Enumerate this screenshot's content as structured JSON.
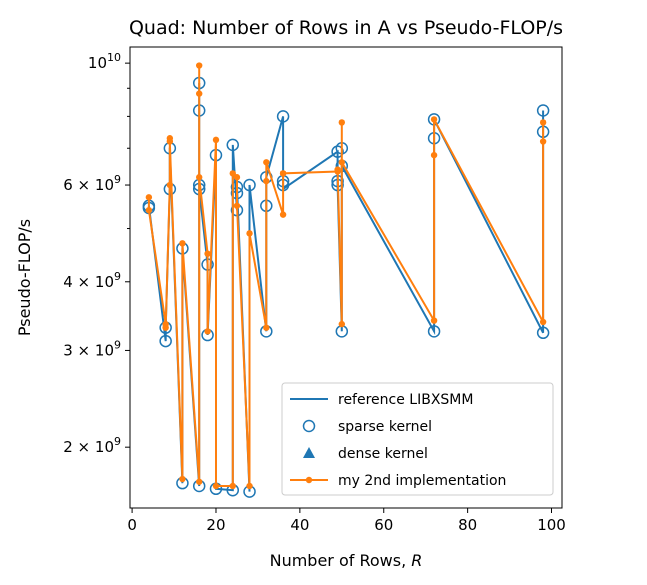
{
  "chart_data": {
    "type": "line",
    "title": "Quad: Number of Rows in A vs Pseudo-FLOP/s",
    "xlabel_text": "Number of Rows, ",
    "xlabel_symbol": "R",
    "ylabel": "Pseudo-FLOP/s",
    "xlim": [
      -0.5,
      102.5
    ],
    "ylim": [
      1550000000.0,
      10700000000.0
    ],
    "yscale": "log",
    "x_ticks": [
      0,
      20,
      40,
      60,
      80,
      100
    ],
    "y_ticks_major": [
      {
        "value": 10000000000.0,
        "base": "10",
        "exp": "10"
      },
      {
        "value": 6000000000.0,
        "mant": "6",
        "times": "×",
        "base": "10",
        "exp": "9"
      },
      {
        "value": 4000000000.0,
        "mant": "4",
        "times": "×",
        "base": "10",
        "exp": "9"
      },
      {
        "value": 3000000000.0,
        "mant": "3",
        "times": "×",
        "base": "10",
        "exp": "9"
      },
      {
        "value": 2000000000.0,
        "mant": "2",
        "times": "×",
        "base": "10",
        "exp": "9"
      }
    ],
    "y_ticks_minor": [
      5000000000.0,
      7000000000.0,
      8000000000.0,
      9000000000.0
    ],
    "colors": {
      "blue": "#1f77b4",
      "orange": "#ff7f0e"
    },
    "legend_position": "lower right",
    "legend": [
      {
        "label": "reference LIBXSMM",
        "style": "line",
        "color": "#1f77b4"
      },
      {
        "label": "sparse kernel",
        "style": "open-circle",
        "color": "#1f77b4"
      },
      {
        "label": "dense kernel",
        "style": "triangle",
        "color": "#1f77b4"
      },
      {
        "label": "my 2nd implementation",
        "style": "line-dot",
        "color": "#ff7f0e"
      }
    ],
    "series": [
      {
        "name": "reference LIBXSMM",
        "style": "line-open-circle",
        "color": "#1f77b4",
        "x": [
          4,
          4,
          8,
          8,
          9,
          9,
          9,
          12,
          12,
          16,
          16,
          16,
          16,
          18,
          18,
          20,
          20,
          24,
          24,
          25,
          25,
          28,
          28,
          32,
          32,
          32,
          36,
          36,
          36,
          49,
          49,
          49,
          50,
          50,
          72,
          72,
          72,
          98,
          98,
          98
        ],
        "y": [
          5450000000.0,
          5500000000.0,
          3120000000.0,
          3300000000.0,
          5900000000.0,
          7000000000.0,
          7020000000.0,
          1720000000.0,
          4600000000.0,
          1700000000.0,
          8200000000.0,
          9200000000.0,
          5900000000.0,
          4300000000.0,
          3200000000.0,
          6800000000.0,
          1680000000.0,
          1670000000.0,
          7100000000.0,
          5400000000.0,
          5950000000.0,
          1660000000.0,
          6000000000.0,
          3250000000.0,
          5500000000.0,
          6200000000.0,
          8000000000.0,
          6000000000.0,
          5900000000.0,
          6900000000.0,
          6100000000.0,
          6000000000.0,
          3250000000.0,
          6500000000.0,
          3250000000.0,
          7300000000.0,
          7900000000.0,
          3230000000.0,
          7500000000.0,
          8200000000.0
        ],
        "markers": [
          [
            4,
            5450000000.0
          ],
          [
            4,
            5500000000.0
          ],
          [
            8,
            3120000000.0
          ],
          [
            8,
            3300000000.0
          ],
          [
            9,
            5900000000.0
          ],
          [
            9,
            7000000000.0
          ],
          [
            12,
            1720000000.0
          ],
          [
            12,
            4600000000.0
          ],
          [
            16,
            1700000000.0
          ],
          [
            16,
            8200000000.0
          ],
          [
            16,
            9200000000.0
          ],
          [
            16,
            5900000000.0
          ],
          [
            16,
            6000000000.0
          ],
          [
            18,
            4300000000.0
          ],
          [
            18,
            3200000000.0
          ],
          [
            20,
            6800000000.0
          ],
          [
            20,
            1680000000.0
          ],
          [
            24,
            1670000000.0
          ],
          [
            24,
            7100000000.0
          ],
          [
            25,
            5400000000.0
          ],
          [
            25,
            5950000000.0
          ],
          [
            25,
            5800000000.0
          ],
          [
            28,
            1660000000.0
          ],
          [
            28,
            6000000000.0
          ],
          [
            32,
            3250000000.0
          ],
          [
            32,
            5500000000.0
          ],
          [
            32,
            6200000000.0
          ],
          [
            36,
            8000000000.0
          ],
          [
            36,
            6000000000.0
          ],
          [
            36,
            6100000000.0
          ],
          [
            49,
            6900000000.0
          ],
          [
            49,
            6100000000.0
          ],
          [
            49,
            6000000000.0
          ],
          [
            50,
            3250000000.0
          ],
          [
            50,
            6500000000.0
          ],
          [
            50,
            7000000000.0
          ],
          [
            72,
            3250000000.0
          ],
          [
            72,
            7300000000.0
          ],
          [
            72,
            7900000000.0
          ],
          [
            98,
            3230000000.0
          ],
          [
            98,
            7500000000.0
          ],
          [
            98,
            8200000000.0
          ]
        ]
      },
      {
        "name": "my 2nd implementation",
        "style": "line-dot",
        "color": "#ff7f0e",
        "x": [
          4,
          4,
          8,
          8,
          9,
          9,
          9,
          12,
          12,
          16,
          16,
          16,
          16,
          18,
          18,
          20,
          20,
          24,
          24,
          25,
          25,
          28,
          28,
          32,
          32,
          32,
          36,
          36,
          36,
          49,
          49,
          50,
          50,
          50,
          72,
          72,
          72,
          98,
          98,
          98
        ],
        "y": [
          5700000000.0,
          5400000000.0,
          3350000000.0,
          3300000000.0,
          6000000000.0,
          7300000000.0,
          7200000000.0,
          1750000000.0,
          4700000000.0,
          1730000000.0,
          9900000000.0,
          8800000000.0,
          6200000000.0,
          4500000000.0,
          3250000000.0,
          7250000000.0,
          1700000000.0,
          1700000000.0,
          6300000000.0,
          6200000000.0,
          5500000000.0,
          1700000000.0,
          4900000000.0,
          3300000000.0,
          6100000000.0,
          6600000000.0,
          5300000000.0,
          6300000000.0,
          6300000000.0,
          6350000000.0,
          6400000000.0,
          3350000000.0,
          7800000000.0,
          6600000000.0,
          3400000000.0,
          6800000000.0,
          7900000000.0,
          3380000000.0,
          7200000000.0,
          7800000000.0
        ]
      }
    ]
  }
}
